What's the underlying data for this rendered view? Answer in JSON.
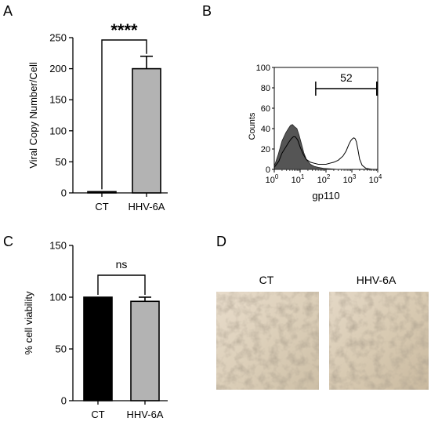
{
  "panels": {
    "A": "A",
    "B": "B",
    "C": "C",
    "D": "D"
  },
  "chart_data": [
    {
      "panel": "A",
      "type": "bar",
      "categories": [
        "CT",
        "HHV-6A"
      ],
      "values": [
        2,
        200
      ],
      "errors": [
        0,
        20
      ],
      "bar_colors": [
        "#000000",
        "#b3b3b3"
      ],
      "ylabel": "Viral Copy Number/Cell",
      "ylim": [
        0,
        250
      ],
      "yticks": [
        0,
        50,
        100,
        150,
        200,
        250
      ],
      "significance": "****"
    },
    {
      "panel": "B",
      "type": "area",
      "xlabel": "gp110",
      "ylabel": "Counts",
      "xscale": "log",
      "xlim": [
        1,
        10000
      ],
      "xtick_exponents": [
        "0",
        "1",
        "2",
        "3",
        "4"
      ],
      "xtick_base": "10",
      "ylim": [
        0,
        100
      ],
      "yticks": [
        0,
        20,
        40,
        60,
        80,
        100
      ],
      "gate_label": "52",
      "gate_range": [
        40,
        10000
      ],
      "series": [
        {
          "fill": "#555555",
          "x": [
            1,
            1.4,
            2,
            2.8,
            3.5,
            4.2,
            5,
            6,
            7.5,
            9,
            11,
            14,
            18,
            25,
            35,
            50,
            80,
            150,
            300,
            1000
          ],
          "y": [
            3,
            14,
            28,
            36,
            40,
            43,
            44,
            42,
            40,
            34,
            26,
            16,
            9,
            5,
            3,
            2,
            1,
            0.5,
            0,
            0
          ]
        },
        {
          "fill": "none",
          "x": [
            1,
            1.5,
            2,
            2.8,
            3.5,
            4.5,
            5.5,
            6.5,
            8,
            10,
            13,
            17,
            25,
            35,
            50,
            70,
            100,
            140,
            200,
            300,
            450,
            600,
            750,
            900,
            1050,
            1200,
            1350,
            1500,
            1700,
            2000,
            2500,
            3500,
            6000
          ],
          "y": [
            2,
            8,
            16,
            22,
            26,
            30,
            32,
            32,
            29,
            22,
            15,
            10,
            7,
            6,
            5,
            5,
            5,
            6,
            7,
            9,
            13,
            18,
            24,
            28,
            30,
            31,
            30,
            27,
            20,
            10,
            4,
            1,
            0
          ]
        }
      ]
    },
    {
      "panel": "C",
      "type": "bar",
      "categories": [
        "CT",
        "HHV-6A"
      ],
      "values": [
        100,
        96
      ],
      "errors": [
        0,
        4
      ],
      "bar_colors": [
        "#000000",
        "#b3b3b3"
      ],
      "ylabel": "% cell viability",
      "ylim": [
        0,
        150
      ],
      "yticks": [
        0,
        50,
        100,
        150
      ],
      "significance": "ns"
    }
  ],
  "micrographs": {
    "labels": [
      "CT",
      "HHV-6A"
    ]
  }
}
